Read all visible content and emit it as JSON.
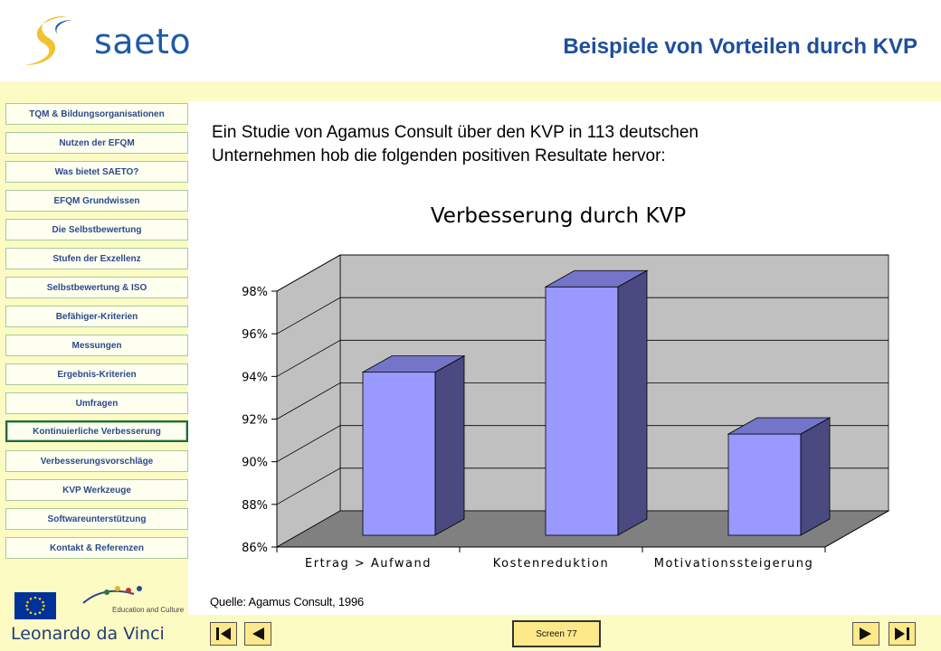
{
  "header": {
    "logo_text": "saeto",
    "title": "Beispiele von Vorteilen durch KVP"
  },
  "sidebar": {
    "items": [
      {
        "label": "TQM & Bildungsorganisationen",
        "active": false
      },
      {
        "label": "Nutzen der EFQM",
        "active": false
      },
      {
        "label": "Was bietet SAETO?",
        "active": false
      },
      {
        "label": "EFQM Grundwissen",
        "active": false
      },
      {
        "label": "Die Selbstbewertung",
        "active": false
      },
      {
        "label": "Stufen der Exzellenz",
        "active": false
      },
      {
        "label": "Selbstbewertung & ISO",
        "active": false
      },
      {
        "label": "Befähiger-Kriterien",
        "active": false
      },
      {
        "label": "Messungen",
        "active": false
      },
      {
        "label": "Ergebnis-Kriterien",
        "active": false
      },
      {
        "label": "Umfragen",
        "active": false
      },
      {
        "label": "Kontinuierliche Verbesserung",
        "active": true
      },
      {
        "label": "Verbesserungsvorschläge",
        "active": false
      },
      {
        "label": "KVP Werkzeuge",
        "active": false
      },
      {
        "label": "Softwareunterstützung",
        "active": false
      },
      {
        "label": "Kontakt & Referenzen",
        "active": false
      }
    ],
    "edu_text": "Education and Culture",
    "leonardo_text": "Leonardo da Vinci"
  },
  "content": {
    "intro_line1": "Ein Studie von Agamus Consult über den KVP in 113 deutschen",
    "intro_line2": "Unternehmen hob die folgenden positiven Resultate hervor:",
    "source": "Quelle: Agamus Consult, 1996"
  },
  "chart_data": {
    "type": "bar",
    "title": "Verbesserung durch KVP",
    "categories": [
      "Ertrag > Aufwand",
      "Kostenreduktion",
      "Motivationssteigerung"
    ],
    "values": [
      94.2,
      98.2,
      91.3
    ],
    "ylim": [
      86,
      98
    ],
    "yticks": [
      "86%",
      "88%",
      "90%",
      "92%",
      "94%",
      "96%",
      "98%"
    ],
    "xlabel": "",
    "ylabel": "",
    "grid": true,
    "colors": {
      "bar_front": "#9999ff",
      "bar_side": "#4a4a80",
      "bar_top": "#7474c8",
      "wall": "#c0c0c0",
      "floor": "#808080"
    }
  },
  "footer": {
    "screen_label": "Screen 77"
  },
  "colors": {
    "title": "#1f4e9a",
    "band": "#fdfbc4",
    "button": "#fde98a"
  }
}
